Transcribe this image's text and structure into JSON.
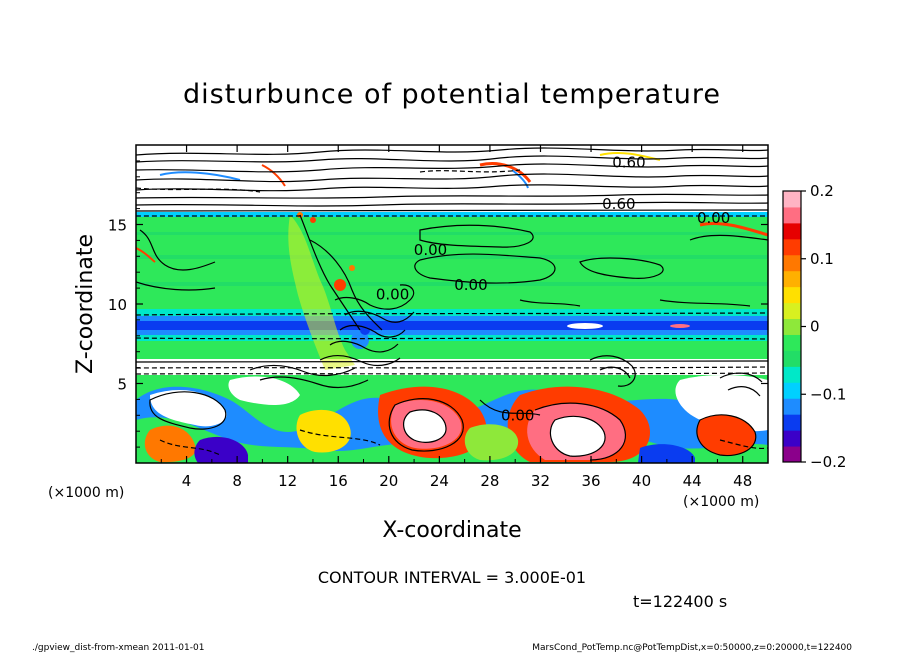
{
  "chart_data": {
    "type": "heatmap",
    "title": "disturbunce of potential temperature",
    "xlabel": "X-coordinate",
    "ylabel": "Z-coordinate",
    "x_unit_label": "(×1000 m)",
    "z_unit_label": "(×1000 m)",
    "xlim": [
      0,
      50
    ],
    "ylim": [
      0,
      20
    ],
    "x_ticks": [
      4,
      8,
      12,
      16,
      20,
      24,
      28,
      32,
      36,
      40,
      44,
      48
    ],
    "y_ticks": [
      5,
      10,
      15
    ],
    "colorbar": {
      "min": -0.2,
      "max": 0.2,
      "ticks": [
        0.2,
        0.1,
        0,
        -0.1,
        -0.2
      ],
      "tick_labels": [
        "0.2",
        "0.1",
        "0",
        "−0.1",
        "−0.2"
      ],
      "colors": [
        "#8b008b",
        "#3b00c8",
        "#0a3cf0",
        "#1e8cff",
        "#00d0ff",
        "#00e8c8",
        "#22dd66",
        "#2ee85a",
        "#8ee83a",
        "#d8f020",
        "#ffe000",
        "#ffb000",
        "#ff7800",
        "#ff3c00",
        "#e60000",
        "#ff6e82",
        "#ffb4c4"
      ]
    },
    "layers": [
      {
        "z_range": [
          0,
          6.3
        ],
        "description_values": "mixed positive/negative"
      },
      {
        "z_range": [
          6.3,
          8.2
        ],
        "value": 0.0
      },
      {
        "z_range": [
          8.2,
          9.0
        ],
        "value": -0.09
      },
      {
        "z_range": [
          9.0,
          15.6
        ],
        "value": 0.0
      },
      {
        "z_range": [
          16.0,
          20.0
        ],
        "value": 0.25
      }
    ],
    "contour_labels": [
      {
        "text": "0.00",
        "x": 23.3,
        "z": 13.4
      },
      {
        "text": "0.00",
        "x": 26.5,
        "z": 11.2
      },
      {
        "text": "0.00",
        "x": 20.3,
        "z": 10.6
      },
      {
        "text": "0.00",
        "x": 30.2,
        "z": 3.0
      },
      {
        "text": "0.00",
        "x": 45.7,
        "z": 15.4
      },
      {
        "text": "0.60",
        "x": 39.0,
        "z": 18.9
      },
      {
        "text": "0.60",
        "x": 38.2,
        "z": 16.3
      }
    ]
  },
  "annotations": {
    "contour_interval": "CONTOUR INTERVAL = 3.000E-01",
    "time_label": "t=122400 s",
    "footer_left": "./gpview_dist-from-xmean  2011-01-01",
    "footer_right": "MarsCond_PotTemp.nc@PotTempDist,x=0:50000,z=0:20000,t=122400"
  }
}
